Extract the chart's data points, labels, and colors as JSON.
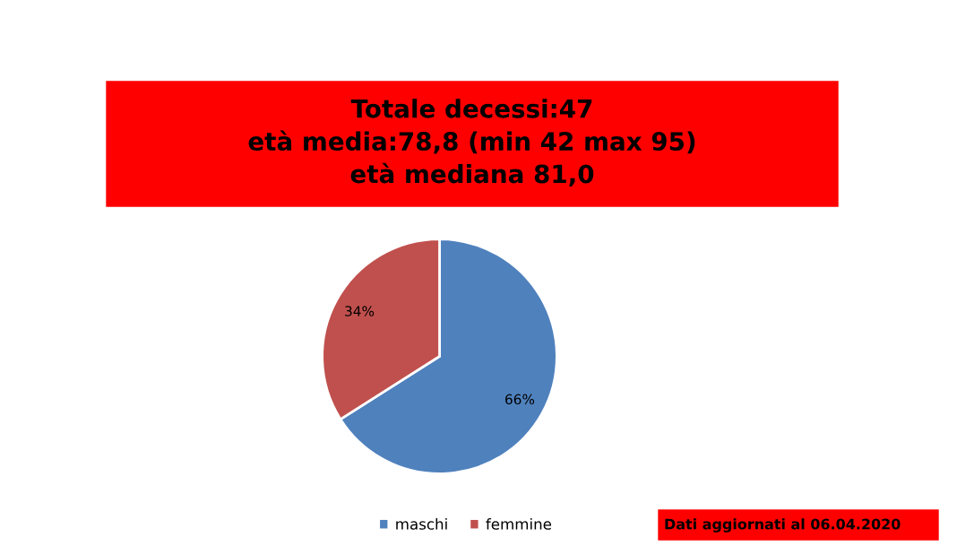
{
  "chart_data": {
    "type": "pie",
    "title": "Totale decessi:47\netà media:78,8 (min 42 max 95)\netà mediana 81,0",
    "categories": [
      "maschi",
      "femmine"
    ],
    "values": [
      66,
      34
    ],
    "colors": [
      "#4f81bd",
      "#c0504d"
    ],
    "value_labels": [
      "66%",
      "34%"
    ],
    "legend": "bottom",
    "annotations": [
      "Dati aggiornati al 06.04.2020"
    ]
  }
}
